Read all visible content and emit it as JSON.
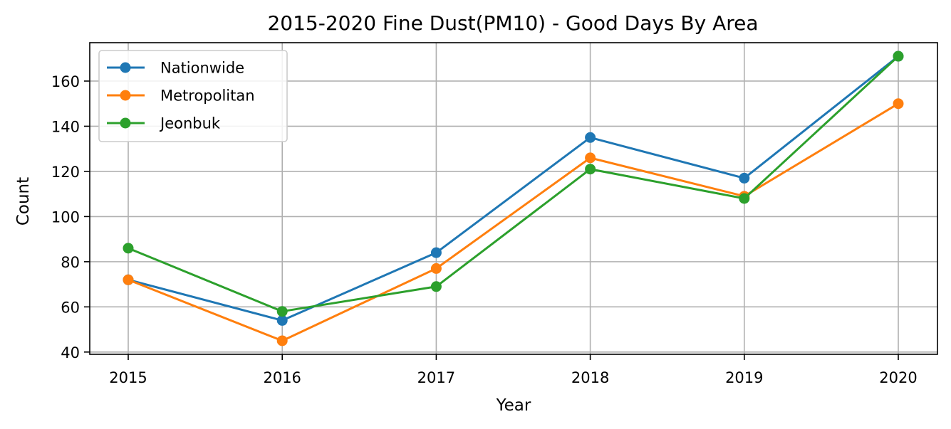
{
  "chart_data": {
    "type": "line",
    "title": "2015-2020 Fine Dust(PM10) - Good Days By Area",
    "xlabel": "Year",
    "ylabel": "Count",
    "categories": [
      "2015",
      "2016",
      "2017",
      "2018",
      "2019",
      "2020"
    ],
    "yticks": [
      40,
      60,
      80,
      100,
      120,
      140,
      160
    ],
    "ylim": [
      39,
      177
    ],
    "grid": true,
    "legend_position": "top-left",
    "series": [
      {
        "name": "Nationwide",
        "color": "#1f77b4",
        "values": [
          72,
          54,
          84,
          135,
          117,
          171
        ]
      },
      {
        "name": "Metropolitan",
        "color": "#ff7f0e",
        "values": [
          72,
          45,
          77,
          126,
          109,
          150
        ]
      },
      {
        "name": "Jeonbuk",
        "color": "#2ca02c",
        "values": [
          86,
          58,
          69,
          121,
          108,
          171
        ]
      }
    ]
  }
}
